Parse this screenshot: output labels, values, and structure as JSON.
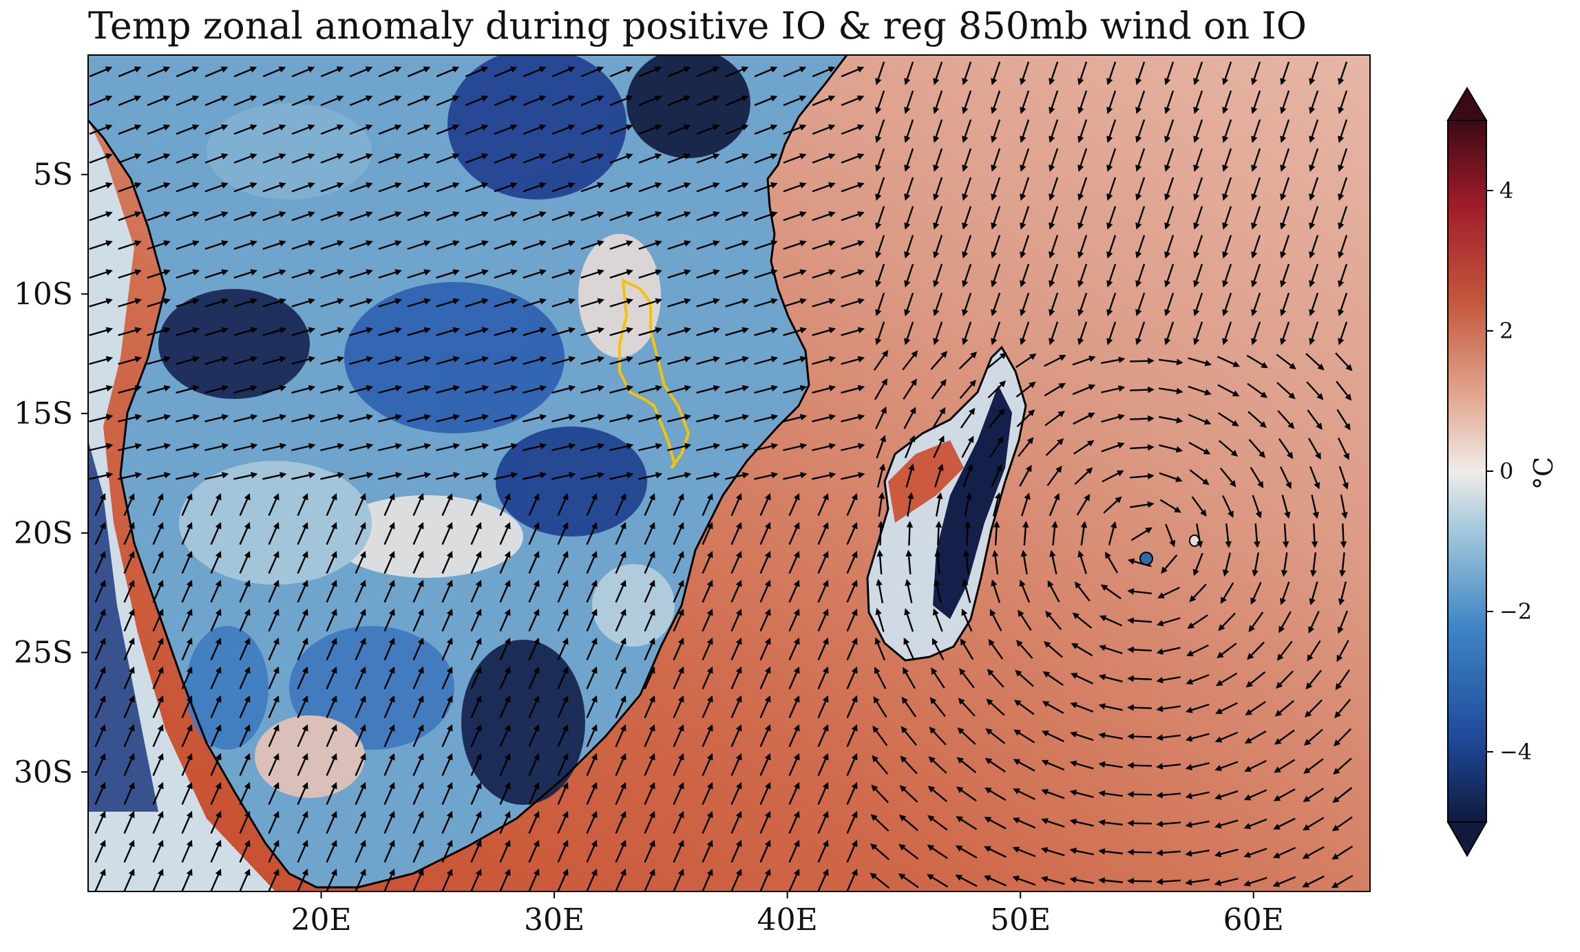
{
  "title": "Temp zonal anomaly during positive IO & reg 850mb wind on IO",
  "map": {
    "lon_range": [
      10,
      65
    ],
    "lat_range": [
      -35,
      0
    ],
    "x_ticks": [
      "20E",
      "30E",
      "40E",
      "50E",
      "60E"
    ],
    "x_tick_values": [
      20,
      30,
      40,
      50,
      60
    ],
    "y_ticks": [
      "5S",
      "10S",
      "15S",
      "20S",
      "25S",
      "30S"
    ],
    "y_tick_values": [
      -5,
      -10,
      -15,
      -20,
      -25,
      -30
    ],
    "land_anomaly": "mostly negative (blue), down to about -5 °C",
    "ocean_anomaly": "positive (red), about +1 to +3 °C",
    "highlight_region_color": "#f4c400",
    "wind_arrow_color": "#000000"
  },
  "colorbar": {
    "label": "°C",
    "ticks": [
      "4",
      "2",
      "0",
      "−2",
      "−4"
    ],
    "tick_values": [
      4,
      2,
      0,
      -2,
      -4
    ],
    "range": [
      -5,
      5
    ],
    "extend": "both",
    "colormap": [
      "#0f1a3d",
      "#1f4a9a",
      "#3f86c5",
      "#a7cadd",
      "#f0ece9",
      "#e3ab94",
      "#c4583d",
      "#9f1c29",
      "#3b0a14"
    ]
  }
}
